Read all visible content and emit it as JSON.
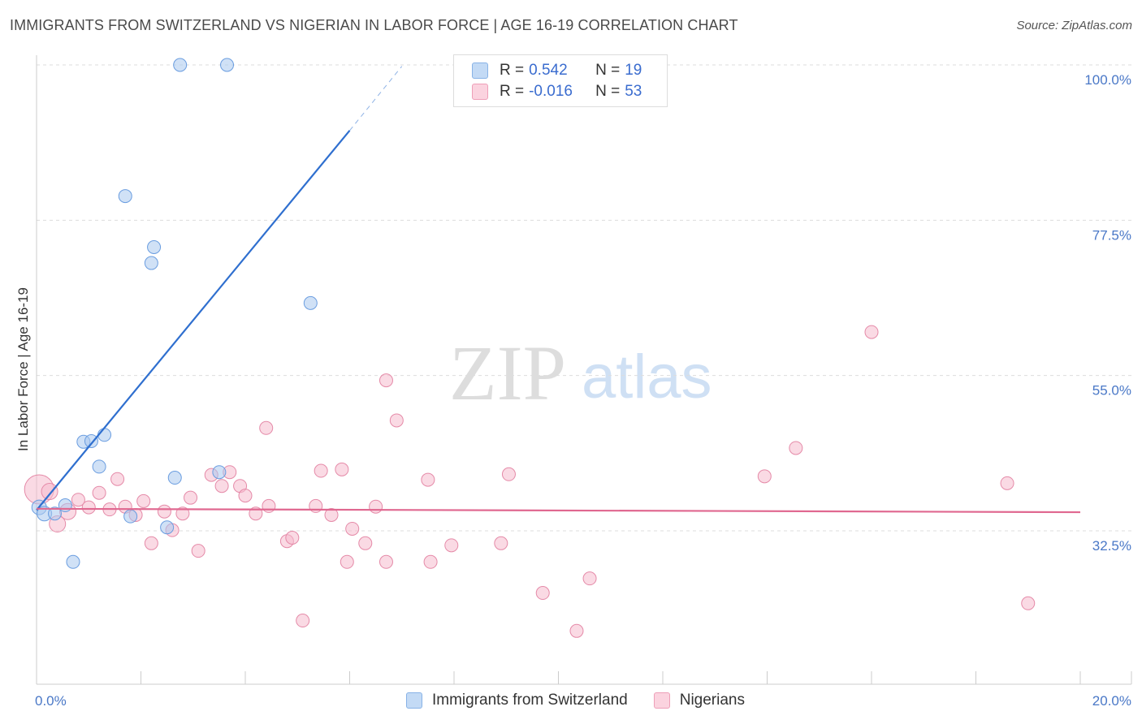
{
  "title": "IMMIGRANTS FROM SWITZERLAND VS NIGERIAN IN LABOR FORCE | AGE 16-19 CORRELATION CHART",
  "source": "Source: ZipAtlas.com",
  "watermark": {
    "zip": "ZIP",
    "atlas": "atlas"
  },
  "legend": {
    "rows": [
      {
        "r_label": "R = ",
        "r_value": "0.542",
        "n_label": "N = ",
        "n_value": "19",
        "color": "#a9c8ee"
      },
      {
        "r_label": "R = ",
        "r_value": "-0.016",
        "n_label": "N = ",
        "n_value": "53",
        "color": "#f6bccd"
      }
    ]
  },
  "bottom_legend": [
    {
      "label": "Immigrants from Switzerland",
      "color": "#a9c8ee"
    },
    {
      "label": "Nigerians",
      "color": "#f6bccd"
    }
  ],
  "chart_data": {
    "type": "scatter",
    "xlabel": "",
    "ylabel": "In Labor Force | Age 16-19",
    "xlim": [
      0,
      20
    ],
    "ylim": [
      10,
      100
    ],
    "x_tick_labels": [
      "0.0%",
      "20.0%"
    ],
    "y_ticks": [
      32.5,
      55.0,
      77.5,
      100.0
    ],
    "y_tick_labels": [
      "32.5%",
      "55.0%",
      "77.5%",
      "100.0%"
    ],
    "series": [
      {
        "name": "Immigrants from Switzerland",
        "color": "#a9c8ee",
        "stroke": "#6a9de0",
        "trend": {
          "x0": 0.0,
          "y0": 35.5,
          "x1": 6.0,
          "y1": 90.5,
          "dash_to_x": 7.0,
          "dash_to_y": 99.8,
          "color": "#2f6fcf"
        },
        "points": [
          {
            "x": 0.05,
            "y": 35.9,
            "s": 9
          },
          {
            "x": 0.15,
            "y": 35.0,
            "s": 9
          },
          {
            "x": 0.35,
            "y": 35.0,
            "s": 8
          },
          {
            "x": 0.55,
            "y": 36.2,
            "s": 8
          },
          {
            "x": 0.7,
            "y": 28.0,
            "s": 8
          },
          {
            "x": 0.9,
            "y": 45.4,
            "s": 8
          },
          {
            "x": 1.05,
            "y": 45.5,
            "s": 8
          },
          {
            "x": 1.3,
            "y": 46.4,
            "s": 8
          },
          {
            "x": 1.2,
            "y": 41.8,
            "s": 8
          },
          {
            "x": 1.7,
            "y": 81.0,
            "s": 8
          },
          {
            "x": 1.8,
            "y": 34.6,
            "s": 8
          },
          {
            "x": 2.25,
            "y": 73.6,
            "s": 8
          },
          {
            "x": 2.2,
            "y": 71.3,
            "s": 8
          },
          {
            "x": 2.5,
            "y": 33.0,
            "s": 8
          },
          {
            "x": 2.65,
            "y": 40.2,
            "s": 8
          },
          {
            "x": 2.75,
            "y": 100.0,
            "s": 8
          },
          {
            "x": 3.5,
            "y": 41.0,
            "s": 8
          },
          {
            "x": 3.65,
            "y": 100.0,
            "s": 8
          },
          {
            "x": 5.25,
            "y": 65.5,
            "s": 8
          }
        ]
      },
      {
        "name": "Nigerians",
        "color": "#f6bccd",
        "stroke": "#e58aa8",
        "trend": {
          "x0": 0.0,
          "y0": 35.7,
          "x1": 20.0,
          "y1": 35.2,
          "color": "#e06890"
        },
        "points": [
          {
            "x": 0.05,
            "y": 38.5,
            "s": 18
          },
          {
            "x": 0.25,
            "y": 38.2,
            "s": 10
          },
          {
            "x": 0.4,
            "y": 33.5,
            "s": 10
          },
          {
            "x": 0.6,
            "y": 35.3,
            "s": 10
          },
          {
            "x": 0.8,
            "y": 37.0,
            "s": 8
          },
          {
            "x": 1.0,
            "y": 35.9,
            "s": 8
          },
          {
            "x": 1.2,
            "y": 38.0,
            "s": 8
          },
          {
            "x": 1.4,
            "y": 35.6,
            "s": 8
          },
          {
            "x": 1.55,
            "y": 40.0,
            "s": 8
          },
          {
            "x": 1.7,
            "y": 36.0,
            "s": 8
          },
          {
            "x": 1.9,
            "y": 34.8,
            "s": 8
          },
          {
            "x": 2.05,
            "y": 36.8,
            "s": 8
          },
          {
            "x": 2.2,
            "y": 30.7,
            "s": 8
          },
          {
            "x": 2.45,
            "y": 35.3,
            "s": 8
          },
          {
            "x": 2.6,
            "y": 32.6,
            "s": 8
          },
          {
            "x": 2.8,
            "y": 35.0,
            "s": 8
          },
          {
            "x": 2.95,
            "y": 37.3,
            "s": 8
          },
          {
            "x": 3.1,
            "y": 29.6,
            "s": 8
          },
          {
            "x": 3.35,
            "y": 40.6,
            "s": 8
          },
          {
            "x": 3.55,
            "y": 39.0,
            "s": 8
          },
          {
            "x": 3.7,
            "y": 41.0,
            "s": 8
          },
          {
            "x": 3.9,
            "y": 39.0,
            "s": 8
          },
          {
            "x": 4.0,
            "y": 37.6,
            "s": 8
          },
          {
            "x": 4.2,
            "y": 35.0,
            "s": 8
          },
          {
            "x": 4.45,
            "y": 36.1,
            "s": 8
          },
          {
            "x": 4.4,
            "y": 47.4,
            "s": 8
          },
          {
            "x": 4.8,
            "y": 31.0,
            "s": 8
          },
          {
            "x": 4.9,
            "y": 31.5,
            "s": 8
          },
          {
            "x": 5.1,
            "y": 19.5,
            "s": 8
          },
          {
            "x": 5.35,
            "y": 36.1,
            "s": 8
          },
          {
            "x": 5.45,
            "y": 41.2,
            "s": 8
          },
          {
            "x": 5.65,
            "y": 34.8,
            "s": 8
          },
          {
            "x": 5.85,
            "y": 41.4,
            "s": 8
          },
          {
            "x": 5.95,
            "y": 28.0,
            "s": 8
          },
          {
            "x": 6.05,
            "y": 32.8,
            "s": 8
          },
          {
            "x": 6.3,
            "y": 30.7,
            "s": 8
          },
          {
            "x": 6.5,
            "y": 36.0,
            "s": 8
          },
          {
            "x": 6.7,
            "y": 28.0,
            "s": 8
          },
          {
            "x": 6.7,
            "y": 54.3,
            "s": 8
          },
          {
            "x": 6.9,
            "y": 48.5,
            "s": 8
          },
          {
            "x": 7.55,
            "y": 28.0,
            "s": 8
          },
          {
            "x": 7.5,
            "y": 39.9,
            "s": 8
          },
          {
            "x": 7.95,
            "y": 30.4,
            "s": 8
          },
          {
            "x": 8.9,
            "y": 30.7,
            "s": 8
          },
          {
            "x": 9.05,
            "y": 40.7,
            "s": 8
          },
          {
            "x": 9.7,
            "y": 23.5,
            "s": 8
          },
          {
            "x": 10.35,
            "y": 18.0,
            "s": 8
          },
          {
            "x": 10.6,
            "y": 25.6,
            "s": 8
          },
          {
            "x": 13.95,
            "y": 40.4,
            "s": 8
          },
          {
            "x": 14.55,
            "y": 44.5,
            "s": 8
          },
          {
            "x": 16.0,
            "y": 61.3,
            "s": 8
          },
          {
            "x": 18.6,
            "y": 39.4,
            "s": 8
          },
          {
            "x": 19.0,
            "y": 22.0,
            "s": 8
          }
        ]
      }
    ]
  }
}
